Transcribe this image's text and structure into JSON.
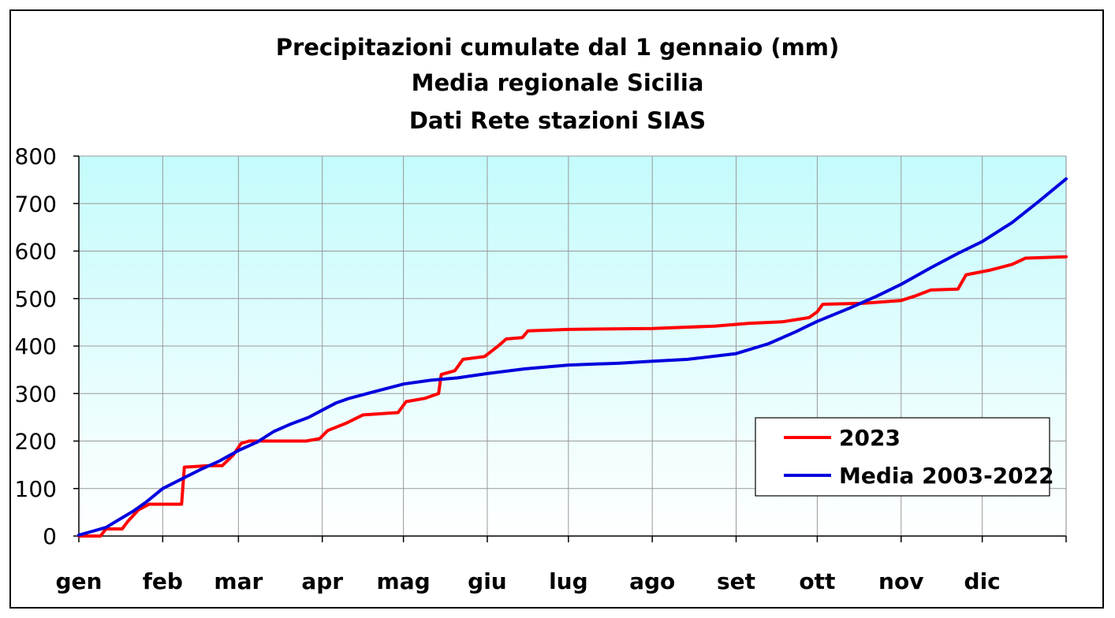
{
  "chart_data": {
    "type": "line",
    "title": [
      "Precipitazioni cumulate dal 1 gennaio (mm)",
      "Media regionale Sicilia",
      "Dati Rete stazioni SIAS"
    ],
    "xlabel": "",
    "ylabel": "",
    "ylim": [
      0,
      800
    ],
    "yticks": [
      0,
      100,
      200,
      300,
      400,
      500,
      600,
      700,
      800
    ],
    "xlim": [
      0,
      365
    ],
    "month_labels": [
      "gen",
      "feb",
      "mar",
      "apr",
      "mag",
      "giu",
      "lug",
      "ago",
      "set",
      "ott",
      "nov",
      "dic"
    ],
    "month_starts": [
      0,
      31,
      59,
      90,
      120,
      151,
      181,
      212,
      243,
      273,
      304,
      334,
      365
    ],
    "grid": true,
    "legend": "bottom-right",
    "series": [
      {
        "name": "2023",
        "color": "#ff0000",
        "points": [
          [
            0,
            0
          ],
          [
            8,
            0
          ],
          [
            10,
            15
          ],
          [
            16,
            15
          ],
          [
            18,
            30
          ],
          [
            22,
            55
          ],
          [
            26,
            67
          ],
          [
            38,
            67
          ],
          [
            39,
            145
          ],
          [
            48,
            148
          ],
          [
            53,
            148
          ],
          [
            57,
            170
          ],
          [
            60,
            195
          ],
          [
            63,
            200
          ],
          [
            84,
            200
          ],
          [
            89,
            205
          ],
          [
            92,
            222
          ],
          [
            99,
            238
          ],
          [
            105,
            255
          ],
          [
            118,
            260
          ],
          [
            121,
            283
          ],
          [
            128,
            290
          ],
          [
            133,
            300
          ],
          [
            134,
            340
          ],
          [
            139,
            348
          ],
          [
            142,
            372
          ],
          [
            150,
            378
          ],
          [
            155,
            400
          ],
          [
            158,
            415
          ],
          [
            164,
            418
          ],
          [
            166,
            432
          ],
          [
            181,
            435
          ],
          [
            212,
            437
          ],
          [
            235,
            442
          ],
          [
            248,
            448
          ],
          [
            260,
            451
          ],
          [
            270,
            460
          ],
          [
            273,
            472
          ],
          [
            275,
            488
          ],
          [
            290,
            490
          ],
          [
            304,
            496
          ],
          [
            309,
            505
          ],
          [
            315,
            518
          ],
          [
            325,
            520
          ],
          [
            328,
            550
          ],
          [
            337,
            560
          ],
          [
            345,
            572
          ],
          [
            350,
            585
          ],
          [
            365,
            588
          ]
        ]
      },
      {
        "name": "Media 2003-2022",
        "color": "#0000dd",
        "points": [
          [
            0,
            2
          ],
          [
            5,
            10
          ],
          [
            10,
            18
          ],
          [
            15,
            35
          ],
          [
            20,
            52
          ],
          [
            25,
            72
          ],
          [
            31,
            100
          ],
          [
            38,
            120
          ],
          [
            45,
            140
          ],
          [
            52,
            158
          ],
          [
            59,
            180
          ],
          [
            66,
            198
          ],
          [
            72,
            220
          ],
          [
            78,
            235
          ],
          [
            85,
            250
          ],
          [
            90,
            265
          ],
          [
            95,
            280
          ],
          [
            100,
            290
          ],
          [
            110,
            305
          ],
          [
            120,
            320
          ],
          [
            130,
            328
          ],
          [
            140,
            333
          ],
          [
            151,
            342
          ],
          [
            165,
            352
          ],
          [
            181,
            360
          ],
          [
            200,
            364
          ],
          [
            212,
            368
          ],
          [
            225,
            372
          ],
          [
            243,
            384
          ],
          [
            255,
            405
          ],
          [
            265,
            430
          ],
          [
            273,
            452
          ],
          [
            285,
            480
          ],
          [
            295,
            505
          ],
          [
            304,
            530
          ],
          [
            315,
            565
          ],
          [
            325,
            595
          ],
          [
            334,
            620
          ],
          [
            345,
            660
          ],
          [
            355,
            705
          ],
          [
            365,
            752
          ]
        ]
      }
    ]
  }
}
